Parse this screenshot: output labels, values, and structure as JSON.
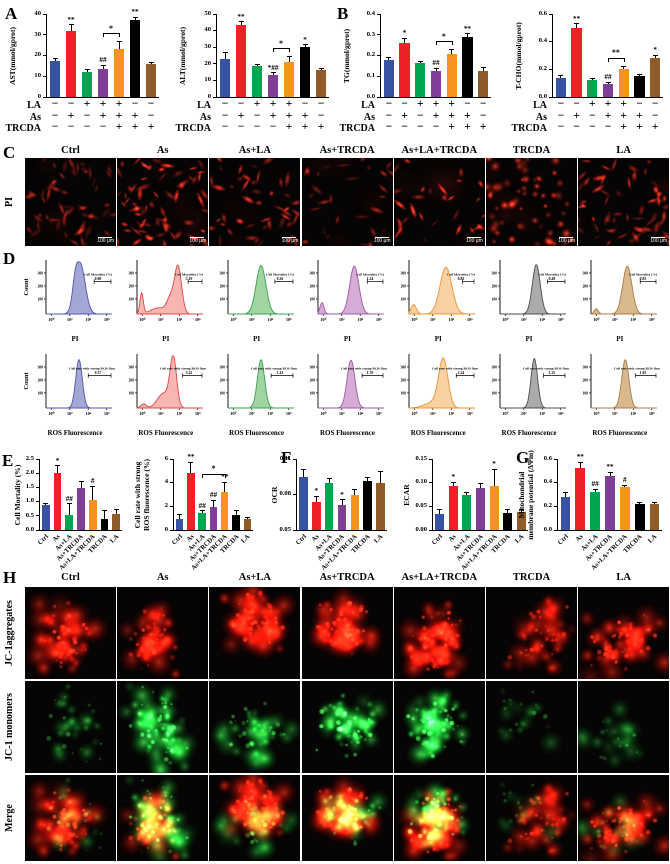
{
  "panels": {
    "A": "A",
    "B": "B",
    "C": "C",
    "D": "D",
    "E": "E",
    "F": "F",
    "G": "G",
    "H": "H"
  },
  "groups": [
    "Ctrl",
    "As",
    "As+LA",
    "As+TRCDA",
    "As+LA+TRCDA",
    "TRCDA",
    "LA"
  ],
  "bar_colors": [
    "#3953a4",
    "#ec2227",
    "#00a551",
    "#7f3f97",
    "#f6921e",
    "#000000",
    "#8f5c28"
  ],
  "treatment_matrix": {
    "rows": [
      {
        "name": "LA",
        "signs": [
          "−",
          "−",
          "+",
          "+",
          "+",
          "−",
          "−"
        ]
      },
      {
        "name": "As",
        "signs": [
          "−",
          "+",
          "−",
          "+",
          "+",
          "+",
          "−"
        ]
      },
      {
        "name": "TRCDA",
        "signs": [
          "−",
          "−",
          "−",
          "−",
          "+",
          "+",
          "+"
        ]
      }
    ]
  },
  "chart_data": [
    {
      "id": "AST",
      "panel": "A",
      "type": "bar",
      "ylabel": "AST(mmol/gprot)",
      "ylim": [
        0,
        40
      ],
      "yticks": [
        "0",
        "10",
        "20",
        "30",
        "40"
      ],
      "categories": [
        "Ctrl",
        "As",
        "LA",
        "As+LA",
        "As+LA+TRCDA",
        "As+TRCDA",
        "TRCDA"
      ],
      "values": [
        17.5,
        32,
        12,
        13.5,
        23,
        37,
        16
      ],
      "errors": [
        0.8,
        2.5,
        1.2,
        1.5,
        3.5,
        1,
        0.6
      ],
      "sig": [
        "",
        "**",
        "",
        "##",
        "",
        "**",
        ""
      ],
      "bracket": {
        "from": 3,
        "to": 4,
        "label": "*"
      },
      "xlabels": "matrix"
    },
    {
      "id": "ALT",
      "panel": "A",
      "type": "bar",
      "ylabel": "ALT(mmol/gprot)",
      "ylim": [
        0,
        50
      ],
      "yticks": [
        "0",
        "10",
        "20",
        "30",
        "40",
        "50"
      ],
      "categories": [
        "Ctrl",
        "As",
        "LA",
        "As+LA",
        "As+LA+TRCDA",
        "As+TRCDA",
        "TRCDA"
      ],
      "values": [
        23,
        43.5,
        18.5,
        13.5,
        21,
        30,
        16.5
      ],
      "errors": [
        3.5,
        1.5,
        1,
        0.8,
        3,
        1.2,
        0.5
      ],
      "sig": [
        "",
        "**",
        "",
        "*##",
        "",
        "*",
        ""
      ],
      "bracket": {
        "from": 3,
        "to": 4,
        "label": "*"
      },
      "xlabels": "matrix"
    },
    {
      "id": "TG",
      "panel": "B",
      "type": "bar",
      "ylabel": "TG(mmol/gprot)",
      "ylim": [
        0,
        0.4
      ],
      "yticks": [
        "0.0",
        "0.1",
        "0.2",
        "0.3",
        "0.4"
      ],
      "categories": [
        "Ctrl",
        "As",
        "LA",
        "As+LA",
        "As+LA+TRCDA",
        "As+TRCDA",
        "TRCDA"
      ],
      "values": [
        0.18,
        0.26,
        0.165,
        0.125,
        0.205,
        0.29,
        0.125
      ],
      "errors": [
        0.01,
        0.02,
        0.006,
        0.01,
        0.02,
        0.012,
        0.015
      ],
      "sig": [
        "",
        "*",
        "",
        "##",
        "",
        "**",
        ""
      ],
      "bracket": {
        "from": 3,
        "to": 4,
        "label": "*"
      },
      "xlabels": "matrix"
    },
    {
      "id": "TCHO",
      "panel": "B",
      "type": "bar",
      "ylabel": "T-CHO(mmol/gprot)",
      "ylim": [
        0,
        0.6
      ],
      "yticks": [
        "0.0",
        "0.2",
        "0.4",
        "0.6"
      ],
      "categories": [
        "Ctrl",
        "As",
        "LA",
        "As+LA",
        "As+LA+TRCDA",
        "As+TRCDA",
        "TRCDA"
      ],
      "values": [
        0.14,
        0.5,
        0.12,
        0.095,
        0.2,
        0.155,
        0.28
      ],
      "errors": [
        0.012,
        0.025,
        0.01,
        0.008,
        0.02,
        0.006,
        0.02
      ],
      "sig": [
        "",
        "**",
        "",
        "##",
        "",
        "",
        "*"
      ],
      "bracket": {
        "from": 3,
        "to": 4,
        "label": "**"
      },
      "xlabels": "matrix"
    },
    {
      "id": "MORT",
      "panel": "E",
      "type": "bar",
      "ylabel": "Cell Mortality (%)",
      "ylim": [
        0,
        2.5
      ],
      "yticks": [
        "0.0",
        "0.5",
        "1.0",
        "1.5",
        "2.0",
        "2.5"
      ],
      "categories": [
        "Ctrl",
        "As",
        "As+LA",
        "As+TRCDA",
        "As+LA+TRCDA",
        "TRCDA",
        "LA"
      ],
      "values": [
        0.87,
        2.02,
        0.52,
        1.47,
        1.07,
        0.4,
        0.55
      ],
      "errors": [
        0.05,
        0.22,
        0.38,
        0.22,
        0.45,
        0.28,
        0.15
      ],
      "sig": [
        "",
        "*",
        "##",
        "",
        "#",
        "",
        ""
      ],
      "xlabels": "rotated"
    },
    {
      "id": "ROSR",
      "panel": "E",
      "type": "bar",
      "ylabel2": [
        "Cell rate with strong",
        "ROS fluorescence (%)"
      ],
      "ylim": [
        0,
        6
      ],
      "yticks": [
        "0",
        "2",
        "4",
        "6"
      ],
      "categories": [
        "Ctrl",
        "As",
        "As+LA",
        "As+TRCDA",
        "As+LA+TRCDA",
        "TRCDA",
        "LA"
      ],
      "values": [
        0.95,
        4.85,
        1.45,
        1.95,
        3.2,
        1.3,
        0.9
      ],
      "errors": [
        0.35,
        0.85,
        0.12,
        0.5,
        0.8,
        0.3,
        0.1
      ],
      "sig": [
        "",
        "**",
        "##",
        "##",
        "**",
        "",
        ""
      ],
      "bracket": {
        "from": 2,
        "to": 4,
        "label": "*"
      },
      "xlabels": "rotated"
    },
    {
      "id": "OCR",
      "panel": "F",
      "type": "bar",
      "ylabel": "OCR",
      "ylim": [
        0.05,
        0.11
      ],
      "yticks": [
        "0.05",
        "0.08",
        "0.11"
      ],
      "categories": [
        "Ctrl",
        "As",
        "As+LA",
        "As+TRCDA",
        "As+LA+TRCDA",
        "TRCDA",
        "LA"
      ],
      "values": [
        0.095,
        0.074,
        0.09,
        0.071,
        0.08,
        0.091,
        0.09
      ],
      "errors": [
        0.006,
        0.004,
        0.003,
        0.004,
        0.004,
        0.003,
        0.009
      ],
      "sig": [
        "",
        "*",
        "",
        "*",
        "",
        "",
        ""
      ],
      "xlabels": "rotated"
    },
    {
      "id": "ECAR",
      "panel": "F",
      "type": "bar",
      "ylabel": "ECAR",
      "ylim": [
        0,
        0.15
      ],
      "yticks": [
        "0.00",
        "0.05",
        "0.10",
        "0.15"
      ],
      "categories": [
        "Ctrl",
        "As",
        "As+LA",
        "As+TRCDA",
        "As+LA+TRCDA",
        "TRCDA",
        "LA"
      ],
      "values": [
        0.033,
        0.092,
        0.073,
        0.088,
        0.094,
        0.036,
        0.038
      ],
      "errors": [
        0.01,
        0.008,
        0.005,
        0.01,
        0.033,
        0.006,
        0.005
      ],
      "sig": [
        "",
        "*",
        "",
        "",
        "*",
        "",
        ""
      ],
      "xlabels": "rotated"
    },
    {
      "id": "MMP",
      "panel": "G",
      "type": "bar",
      "ylabel2": [
        "Mitochondrial",
        "membrane potential (ΔΨm)"
      ],
      "ylim": [
        0,
        0.6
      ],
      "yticks": [
        "0.0",
        "0.2",
        "0.4",
        "0.6"
      ],
      "categories": [
        "Ctrl",
        "As",
        "As+LA",
        "As+TRCDA",
        "As+LA+TRCDA",
        "TRCDA",
        "LA"
      ],
      "values": [
        0.28,
        0.52,
        0.32,
        0.46,
        0.36,
        0.22,
        0.22
      ],
      "errors": [
        0.03,
        0.05,
        0.02,
        0.025,
        0.015,
        0.012,
        0.01
      ],
      "sig": [
        "",
        "**",
        "##",
        "**",
        "#",
        "",
        ""
      ],
      "xlabels": "rotated"
    }
  ],
  "panel_C": {
    "row_label": "PI",
    "scale_bar_label": "100 μm",
    "columns": [
      "Ctrl",
      "As",
      "As+LA",
      "As+TRCDA",
      "As+LA+TRCDA",
      "TRCDA",
      "LA"
    ],
    "images": [
      {
        "count": 55,
        "bright": 0.5,
        "style": "cells"
      },
      {
        "count": 70,
        "bright": 0.75,
        "style": "cells"
      },
      {
        "count": 45,
        "bright": 0.7,
        "style": "cells"
      },
      {
        "count": 28,
        "bright": 0.5,
        "style": "cells"
      },
      {
        "count": 30,
        "bright": 0.8,
        "style": "cells"
      },
      {
        "count": 60,
        "bright": 1.0,
        "style": "dots"
      },
      {
        "count": 60,
        "bright": 0.65,
        "style": "cells"
      }
    ]
  },
  "panel_D": {
    "count_label": "Count",
    "xticks": [
      "10⁰",
      "10²",
      "10⁴",
      "10⁶"
    ],
    "ytick_labels": [
      "100",
      "200",
      "300"
    ],
    "fills": [
      "#9398cf",
      "#f7a8a5",
      "#8fce92",
      "#cf9cce",
      "#f9c992",
      "#9c9c9c",
      "#d4ab7a"
    ],
    "strokes": [
      "#4e57a8",
      "#e0474b",
      "#3aa055",
      "#9c5ca0",
      "#ef9434",
      "#4c4c4c",
      "#a87c45"
    ],
    "rows": [
      {
        "x_label": "PI",
        "gate_label": "Cell Mortality (%)",
        "values": [
          "0.90",
          "5.19",
          "0.26",
          "1.24",
          "0.83",
          "0.49",
          "0.83"
        ],
        "peaks": [
          [
            [
              0.52,
              0.075,
              0.95
            ],
            [
              0.44,
              0.04,
              0.3
            ]
          ],
          [
            [
              0.62,
              0.055,
              0.92
            ],
            [
              0.07,
              0.025,
              0.4
            ],
            [
              0.33,
              0.12,
              0.12
            ],
            [
              0.5,
              0.05,
              0.25
            ]
          ],
          [
            [
              0.5,
              0.075,
              0.93
            ]
          ],
          [
            [
              0.55,
              0.07,
              0.92
            ],
            [
              0.06,
              0.03,
              0.22
            ]
          ],
          [
            [
              0.56,
              0.09,
              0.9
            ],
            [
              0.07,
              0.04,
              0.18
            ]
          ],
          [
            [
              0.55,
              0.06,
              0.95
            ]
          ],
          [
            [
              0.55,
              0.07,
              0.92
            ],
            [
              0.08,
              0.03,
              0.1
            ]
          ]
        ]
      },
      {
        "x_label": "ROS Fluorescence",
        "gate_label": "Cell rate with strong ROS fluorescence",
        "values": [
          "0.37",
          "3.22",
          "1.43",
          "1.70",
          "2.24",
          "1.25",
          "1.05"
        ],
        "peaks": [
          [
            [
              0.5,
              0.05,
              0.93
            ]
          ],
          [
            [
              0.55,
              0.05,
              0.95
            ],
            [
              0.4,
              0.09,
              0.28
            ],
            [
              0.1,
              0.04,
              0.08
            ]
          ],
          [
            [
              0.5,
              0.055,
              0.93
            ]
          ],
          [
            [
              0.5,
              0.06,
              0.92
            ]
          ],
          [
            [
              0.52,
              0.07,
              0.93
            ],
            [
              0.35,
              0.12,
              0.1
            ]
          ],
          [
            [
              0.52,
              0.05,
              0.95
            ]
          ],
          [
            [
              0.52,
              0.055,
              0.93
            ]
          ]
        ]
      }
    ]
  },
  "panel_H": {
    "columns": [
      "Ctrl",
      "As",
      "As+LA",
      "As+TRCDA",
      "As+LA+TRCDA",
      "TRCDA",
      "LA"
    ],
    "rows": [
      {
        "label": "JC-1aggregates",
        "mode": "red"
      },
      {
        "label": "JC-1 monomers",
        "mode": "green"
      },
      {
        "label": "Merge",
        "mode": "merge"
      }
    ],
    "red_density": [
      0.75,
      0.6,
      0.9,
      0.9,
      1.0,
      0.55,
      0.8
    ],
    "green_density": [
      0.3,
      1.0,
      0.5,
      0.8,
      0.9,
      0.15,
      0.2
    ]
  }
}
